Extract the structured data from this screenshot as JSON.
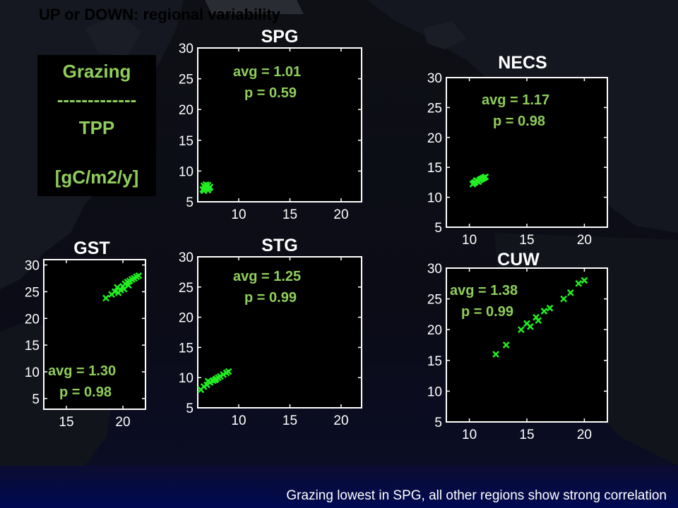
{
  "title": "UP or DOWN: regional variability",
  "legend": {
    "line1": "Grazing",
    "line2": "-------------",
    "line3": "TPP",
    "line4": "[gC/m2/y]"
  },
  "footer": "Grazing lowest in SPG, all other regions show strong correlation",
  "colors": {
    "marker": "#22ee22",
    "stat_text": "#8fce5a",
    "axis": "#ffffff",
    "plot_bg": "#000000"
  },
  "chart_data": [
    {
      "type": "scatter",
      "title": "SPG",
      "xlim": [
        6,
        22
      ],
      "ylim": [
        5,
        30
      ],
      "xticks": [
        10,
        15,
        20
      ],
      "yticks": [
        5,
        10,
        15,
        20,
        25,
        30
      ],
      "annotation": {
        "avg": "avg = 1.01",
        "p": "p   = 0.59"
      },
      "points": [
        [
          6.5,
          7.0
        ],
        [
          6.7,
          7.3
        ],
        [
          6.9,
          7.5
        ],
        [
          7.1,
          7.2
        ],
        [
          6.6,
          7.6
        ],
        [
          7.0,
          6.9
        ],
        [
          6.8,
          7.8
        ],
        [
          7.2,
          7.4
        ],
        [
          6.6,
          6.8
        ],
        [
          7.0,
          7.7
        ]
      ]
    },
    {
      "type": "scatter",
      "title": "NECS",
      "xlim": [
        8,
        22
      ],
      "ylim": [
        5,
        30
      ],
      "xticks": [
        10,
        15,
        20
      ],
      "yticks": [
        5,
        10,
        15,
        20,
        25,
        30
      ],
      "annotation": {
        "avg": "avg = 1.17",
        "p": "p   = 0.98"
      },
      "points": [
        [
          10.3,
          12.2
        ],
        [
          10.5,
          12.5
        ],
        [
          10.7,
          12.7
        ],
        [
          10.9,
          12.9
        ],
        [
          11.0,
          13.0
        ],
        [
          11.2,
          13.2
        ],
        [
          11.4,
          13.4
        ],
        [
          10.6,
          12.8
        ],
        [
          10.8,
          12.6
        ],
        [
          11.1,
          13.1
        ],
        [
          11.3,
          13.3
        ],
        [
          10.4,
          12.4
        ]
      ]
    },
    {
      "type": "scatter",
      "title": "GST",
      "xlim": [
        13,
        22
      ],
      "ylim": [
        3,
        31
      ],
      "xticks": [
        15,
        20
      ],
      "yticks": [
        5,
        10,
        15,
        20,
        25,
        30
      ],
      "annotation": {
        "avg": "avg = 1.30",
        "p": "p   = 0.98"
      },
      "points": [
        [
          18.5,
          23.8
        ],
        [
          19.0,
          24.5
        ],
        [
          19.3,
          25.0
        ],
        [
          19.5,
          25.8
        ],
        [
          19.8,
          25.3
        ],
        [
          20.0,
          26.0
        ],
        [
          20.2,
          26.5
        ],
        [
          20.4,
          26.8
        ],
        [
          20.6,
          27.0
        ],
        [
          20.8,
          27.3
        ],
        [
          21.0,
          27.5
        ],
        [
          21.2,
          27.8
        ],
        [
          21.4,
          28.0
        ],
        [
          19.6,
          24.8
        ],
        [
          20.1,
          25.5
        ],
        [
          20.5,
          26.2
        ]
      ]
    },
    {
      "type": "scatter",
      "title": "STG",
      "xlim": [
        6,
        22
      ],
      "ylim": [
        5,
        30
      ],
      "xticks": [
        10,
        15,
        20
      ],
      "yticks": [
        5,
        10,
        15,
        20,
        25,
        30
      ],
      "annotation": {
        "avg": "avg = 1.25",
        "p": "p   = 0.99"
      },
      "points": [
        [
          6.3,
          8.0
        ],
        [
          6.6,
          8.5
        ],
        [
          6.9,
          8.8
        ],
        [
          7.2,
          9.2
        ],
        [
          7.5,
          9.5
        ],
        [
          7.8,
          9.8
        ],
        [
          8.0,
          10.0
        ],
        [
          8.2,
          10.2
        ],
        [
          8.5,
          10.5
        ],
        [
          8.8,
          10.8
        ],
        [
          9.0,
          11.0
        ],
        [
          7.0,
          9.4
        ],
        [
          7.7,
          9.6
        ]
      ]
    },
    {
      "type": "scatter",
      "title": "CUW",
      "xlim": [
        8,
        22
      ],
      "ylim": [
        5,
        30
      ],
      "xticks": [
        10,
        15,
        20
      ],
      "yticks": [
        5,
        10,
        15,
        20,
        25,
        30
      ],
      "annotation": {
        "avg": "avg = 1.38",
        "p": "p   = 0.99"
      },
      "points": [
        [
          12.3,
          16.0
        ],
        [
          13.2,
          17.5
        ],
        [
          14.5,
          20.0
        ],
        [
          15.0,
          21.0
        ],
        [
          15.3,
          20.5
        ],
        [
          15.8,
          22.0
        ],
        [
          16.0,
          21.5
        ],
        [
          16.5,
          23.0
        ],
        [
          17.0,
          23.5
        ],
        [
          18.2,
          25.0
        ],
        [
          18.8,
          26.0
        ],
        [
          19.5,
          27.5
        ],
        [
          20.0,
          28.0
        ]
      ]
    }
  ]
}
